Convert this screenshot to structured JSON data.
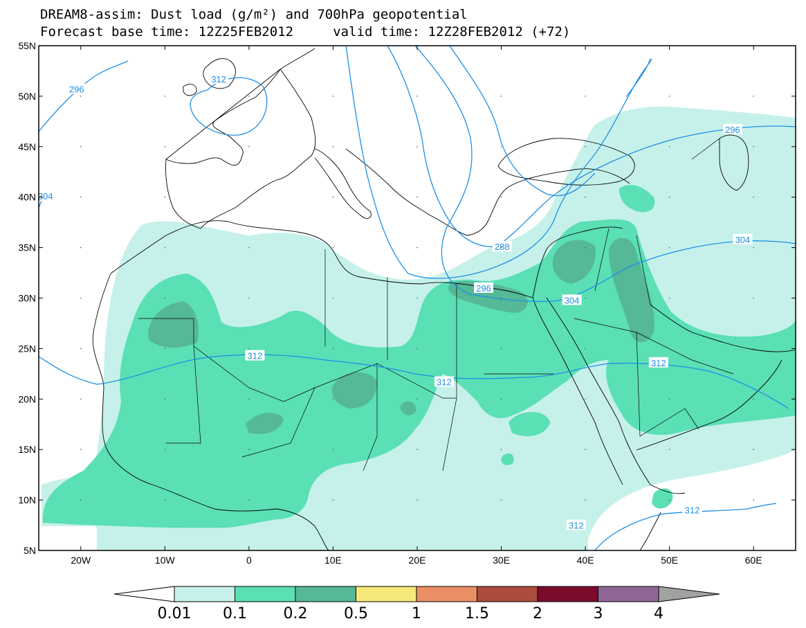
{
  "header": {
    "line1": "DREAM8-assim: Dust load (g/m²) and 700hPa geopotential",
    "line2": "Forecast base time: 12Z25FEB2012     valid time: 12Z28FEB2012 (+72)"
  },
  "map": {
    "lon_range": [
      -25,
      65
    ],
    "lat_range": [
      5,
      55
    ],
    "lon_ticks": [
      {
        "lon": -20,
        "label": "20W"
      },
      {
        "lon": -10,
        "label": "10W"
      },
      {
        "lon": 0,
        "label": "0"
      },
      {
        "lon": 10,
        "label": "10E"
      },
      {
        "lon": 20,
        "label": "20E"
      },
      {
        "lon": 30,
        "label": "30E"
      },
      {
        "lon": 40,
        "label": "40E"
      },
      {
        "lon": 50,
        "label": "50E"
      },
      {
        "lon": 60,
        "label": "60E"
      }
    ],
    "lat_ticks": [
      {
        "lat": 55,
        "label": "55N"
      },
      {
        "lat": 50,
        "label": "50N"
      },
      {
        "lat": 45,
        "label": "45N"
      },
      {
        "lat": 40,
        "label": "40N"
      },
      {
        "lat": 35,
        "label": "35N"
      },
      {
        "lat": 30,
        "label": "30N"
      },
      {
        "lat": 25,
        "label": "25N"
      },
      {
        "lat": 20,
        "label": "20N"
      },
      {
        "lat": 15,
        "label": "15N"
      },
      {
        "lat": 10,
        "label": "10N"
      },
      {
        "lat": 5,
        "label": "5N"
      }
    ],
    "contour_labels": [
      {
        "text": "296",
        "lon": -20.5,
        "lat": 50.7
      },
      {
        "text": "312",
        "lon": -3.6,
        "lat": 51.7
      },
      {
        "text": "296",
        "lon": 57.5,
        "lat": 46.7
      },
      {
        "text": "304",
        "lon": -24.2,
        "lat": 40.1
      },
      {
        "text": "288",
        "lon": 30.1,
        "lat": 35.1
      },
      {
        "text": "304",
        "lon": 58.7,
        "lat": 35.8
      },
      {
        "text": "296",
        "lon": 27.9,
        "lat": 31.0
      },
      {
        "text": "304",
        "lon": 38.4,
        "lat": 29.8
      },
      {
        "text": "312",
        "lon": 0.7,
        "lat": 24.3
      },
      {
        "text": "312",
        "lon": 48.7,
        "lat": 23.6
      },
      {
        "text": "312",
        "lon": 23.2,
        "lat": 21.7
      },
      {
        "text": "312",
        "lon": 52.7,
        "lat": 9.0
      },
      {
        "text": "312",
        "lon": 38.9,
        "lat": 7.5
      }
    ]
  },
  "colorbar": {
    "labels": [
      "0.01",
      "0.1",
      "0.2",
      "0.5",
      "1",
      "1.5",
      "2",
      "3",
      "4"
    ],
    "colors": [
      "#ffffff",
      "#c6f1ea",
      "#5bdfb5",
      "#55b897",
      "#f5e97a",
      "#ea8f65",
      "#ac4c3c",
      "#7c0b2c",
      "#8e6796",
      "#a1a1a1"
    ]
  },
  "colors": {
    "dust_light": "#c6f1ea",
    "dust_medium": "#5bdfb5",
    "dust_dark": "#55b897",
    "contour": "#1e8fe6",
    "coast": "#000000"
  }
}
